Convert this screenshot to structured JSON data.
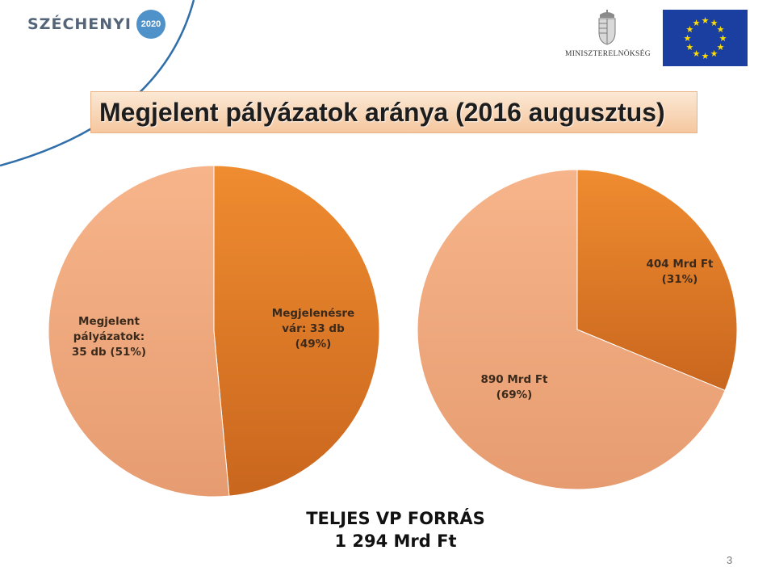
{
  "header": {
    "brand_text": "SZÉCHENYI",
    "brand_year": "2020",
    "ministry_name": "MINISZTERELNÖKSÉG"
  },
  "slide": {
    "title": "Megjelent pályázatok aránya (2016 augusztus)",
    "total_line1": "TELJES VP FORRÁS",
    "total_line2": "1 294 Mrd Ft",
    "page_number": "3"
  },
  "colors": {
    "dark_slice": "#e6842e",
    "light_slice": "#f5a87c",
    "title_bg": "#f8d3b1",
    "eu_blue": "#1a3fa1",
    "eu_star": "#ffdd00"
  },
  "chart_data": [
    {
      "type": "pie",
      "slices": [
        {
          "label_lines": [
            "Megjelenésre",
            "vár: 33 db",
            "(49%)"
          ],
          "value": 33,
          "percent": 49,
          "color": "#e6842e"
        },
        {
          "label_lines": [
            "Megjelent",
            "pályázatok:",
            "35 db (51%)"
          ],
          "value": 35,
          "percent": 51,
          "color": "#f5a87c"
        }
      ]
    },
    {
      "type": "pie",
      "slices": [
        {
          "label_lines": [
            "404 Mrd Ft",
            "(31%)"
          ],
          "value": 404,
          "percent": 31,
          "color": "#e6842e"
        },
        {
          "label_lines": [
            "890 Mrd Ft",
            "(69%)"
          ],
          "value": 890,
          "percent": 69,
          "color": "#f5a87c"
        }
      ]
    }
  ]
}
